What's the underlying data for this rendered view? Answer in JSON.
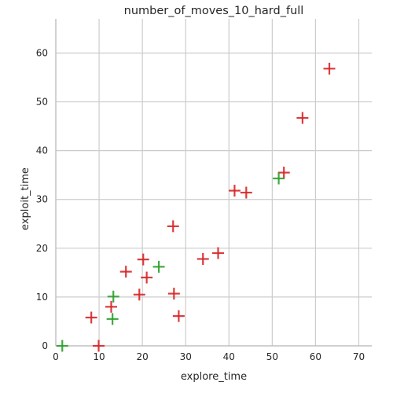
{
  "chart_data": {
    "type": "scatter",
    "title": "number_of_moves_10_hard_full",
    "xlabel": "explore_time",
    "ylabel": "exploit_time",
    "xlim": [
      0,
      73
    ],
    "ylim": [
      0,
      67
    ],
    "xticks": [
      0,
      10,
      20,
      30,
      40,
      50,
      60,
      70
    ],
    "yticks": [
      0,
      10,
      20,
      30,
      40,
      50,
      60
    ],
    "grid": true,
    "marker": "plus",
    "series": [
      {
        "color": "#d62728",
        "points": [
          {
            "x": 63.2,
            "y": 56.8
          },
          {
            "x": 57.0,
            "y": 46.7
          },
          {
            "x": 52.7,
            "y": 35.5
          },
          {
            "x": 41.3,
            "y": 31.8
          },
          {
            "x": 44.0,
            "y": 31.4
          },
          {
            "x": 27.1,
            "y": 24.5
          },
          {
            "x": 37.5,
            "y": 19.0
          },
          {
            "x": 34.0,
            "y": 17.8
          },
          {
            "x": 20.2,
            "y": 17.7
          },
          {
            "x": 16.2,
            "y": 15.2
          },
          {
            "x": 21.0,
            "y": 14.0
          },
          {
            "x": 19.3,
            "y": 10.5
          },
          {
            "x": 27.3,
            "y": 10.7
          },
          {
            "x": 12.8,
            "y": 8.0
          },
          {
            "x": 8.2,
            "y": 5.8
          },
          {
            "x": 28.4,
            "y": 6.1
          },
          {
            "x": 9.9,
            "y": 0.0
          }
        ]
      },
      {
        "color": "#2ca02c",
        "points": [
          {
            "x": 51.5,
            "y": 34.3
          },
          {
            "x": 23.8,
            "y": 16.2
          },
          {
            "x": 13.3,
            "y": 10.1
          },
          {
            "x": 13.1,
            "y": 5.5
          },
          {
            "x": 1.5,
            "y": 0.0
          }
        ]
      }
    ]
  }
}
